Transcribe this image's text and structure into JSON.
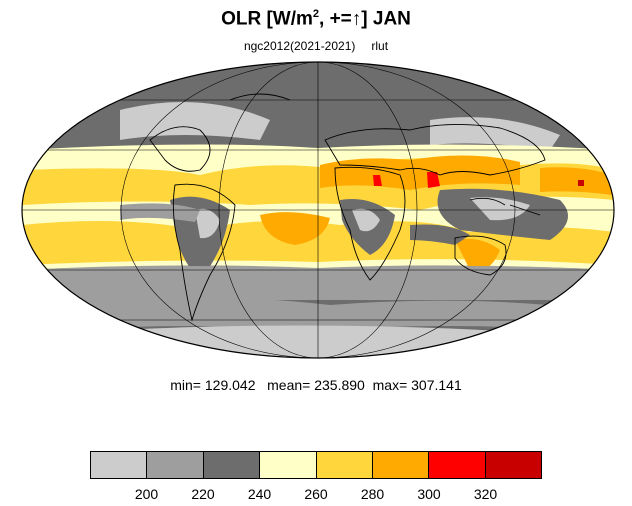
{
  "title": {
    "prefix": "OLR [W/m",
    "superscript": "2",
    "suffix": ", +=↑] JAN"
  },
  "subtitle": {
    "case": "ngc2012(2021-2021)",
    "variable": "rlut"
  },
  "stats": {
    "text": "min= 129.042   mean= 235.890  max= 307.141"
  },
  "legend": {
    "colors": [
      "#cccccc",
      "#9e9e9e",
      "#6d6d6d",
      "#ffffc8",
      "#ffd73c",
      "#ffaa00",
      "#ff0000",
      "#c80000"
    ],
    "labels": [
      "200",
      "220",
      "240",
      "260",
      "280",
      "300",
      "320"
    ]
  },
  "map_colors": {
    "ocean_base": "#9e9e9e",
    "polar": "#6d6d6d",
    "tropical_low": "#ffffc8",
    "tropical_mid": "#ffd73c",
    "tropical_high": "#ffaa00",
    "peak": "#ff0000",
    "peak_dark": "#c80000",
    "convective": "#cccccc"
  }
}
